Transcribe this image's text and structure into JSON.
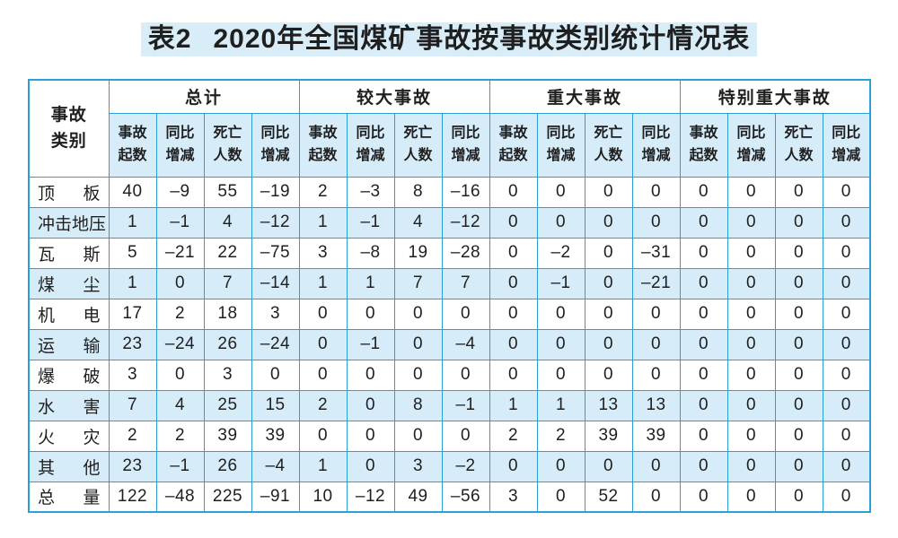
{
  "title": {
    "prefix": "表2",
    "main": "2020年全国煤矿事故按事故类别统计情况表"
  },
  "colors": {
    "table_border": "#2a9fd8",
    "row_alt_background": "#d6ecf9",
    "title_highlight": "#d9edf8",
    "text": "#1f1f1f",
    "page_background": "#ffffff"
  },
  "table": {
    "corner_header_lines": [
      "事故",
      "类别"
    ],
    "groups": [
      "总计",
      "较大事故",
      "重大事故",
      "特别重大事故"
    ],
    "sub_headers": [
      [
        "事故",
        "起数"
      ],
      [
        "同比",
        "增减"
      ],
      [
        "死亡",
        "人数"
      ],
      [
        "同比",
        "增减"
      ]
    ],
    "rows": [
      {
        "label": "顶板",
        "values": [
          "40",
          "–9",
          "55",
          "–19",
          "2",
          "–3",
          "8",
          "–16",
          "0",
          "0",
          "0",
          "0",
          "0",
          "0",
          "0",
          "0"
        ]
      },
      {
        "label": "冲击地压",
        "values": [
          "1",
          "–1",
          "4",
          "–12",
          "1",
          "–1",
          "4",
          "–12",
          "0",
          "0",
          "0",
          "0",
          "0",
          "0",
          "0",
          "0"
        ]
      },
      {
        "label": "瓦斯",
        "values": [
          "5",
          "–21",
          "22",
          "–75",
          "3",
          "–8",
          "19",
          "–28",
          "0",
          "–2",
          "0",
          "–31",
          "0",
          "0",
          "0",
          "0"
        ]
      },
      {
        "label": "煤尘",
        "values": [
          "1",
          "0",
          "7",
          "–14",
          "1",
          "1",
          "7",
          "7",
          "0",
          "–1",
          "0",
          "–21",
          "0",
          "0",
          "0",
          "0"
        ]
      },
      {
        "label": "机电",
        "values": [
          "17",
          "2",
          "18",
          "3",
          "0",
          "0",
          "0",
          "0",
          "0",
          "0",
          "0",
          "0",
          "0",
          "0",
          "0",
          "0"
        ]
      },
      {
        "label": "运输",
        "values": [
          "23",
          "–24",
          "26",
          "–24",
          "0",
          "–1",
          "0",
          "–4",
          "0",
          "0",
          "0",
          "0",
          "0",
          "0",
          "0",
          "0"
        ]
      },
      {
        "label": "爆破",
        "values": [
          "3",
          "0",
          "3",
          "0",
          "0",
          "0",
          "0",
          "0",
          "0",
          "0",
          "0",
          "0",
          "0",
          "0",
          "0",
          "0"
        ]
      },
      {
        "label": "水害",
        "values": [
          "7",
          "4",
          "25",
          "15",
          "2",
          "0",
          "8",
          "–1",
          "1",
          "1",
          "13",
          "13",
          "0",
          "0",
          "0",
          "0"
        ]
      },
      {
        "label": "火灾",
        "values": [
          "2",
          "2",
          "39",
          "39",
          "0",
          "0",
          "0",
          "0",
          "2",
          "2",
          "39",
          "39",
          "0",
          "0",
          "0",
          "0"
        ]
      },
      {
        "label": "其他",
        "values": [
          "23",
          "–1",
          "26",
          "–4",
          "1",
          "0",
          "3",
          "–2",
          "0",
          "0",
          "0",
          "0",
          "0",
          "0",
          "0",
          "0"
        ]
      },
      {
        "label": "总量",
        "values": [
          "122",
          "–48",
          "225",
          "–91",
          "10",
          "–12",
          "49",
          "–56",
          "3",
          "0",
          "52",
          "0",
          "0",
          "0",
          "0",
          "0"
        ]
      }
    ]
  }
}
